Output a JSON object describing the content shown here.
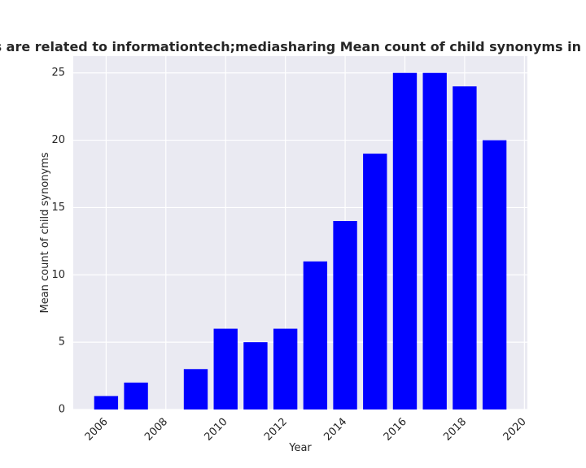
{
  "chart_data": {
    "type": "bar",
    "title": "All categories are related to informationtech;mediasharing Mean count of child synonyms in privacy policies",
    "xlabel": "Year",
    "ylabel": "Mean count of child synonyms",
    "x": [
      2006,
      2007,
      2009,
      2010,
      2011,
      2012,
      2013,
      2014,
      2015,
      2016,
      2017,
      2018,
      2019
    ],
    "values": [
      1,
      2,
      3,
      6,
      5,
      6,
      11,
      14,
      19,
      25,
      25,
      24,
      20
    ],
    "xticks": [
      2006,
      2008,
      2010,
      2012,
      2014,
      2016,
      2018,
      2020
    ],
    "yticks": [
      0,
      5,
      10,
      15,
      20,
      25
    ],
    "xlim": [
      2004.9,
      2020.1
    ],
    "ylim": [
      0,
      26.25
    ],
    "bar_color": "#0000ff",
    "plot_background": "#eaeaf2",
    "grid": true,
    "legend": "none"
  }
}
